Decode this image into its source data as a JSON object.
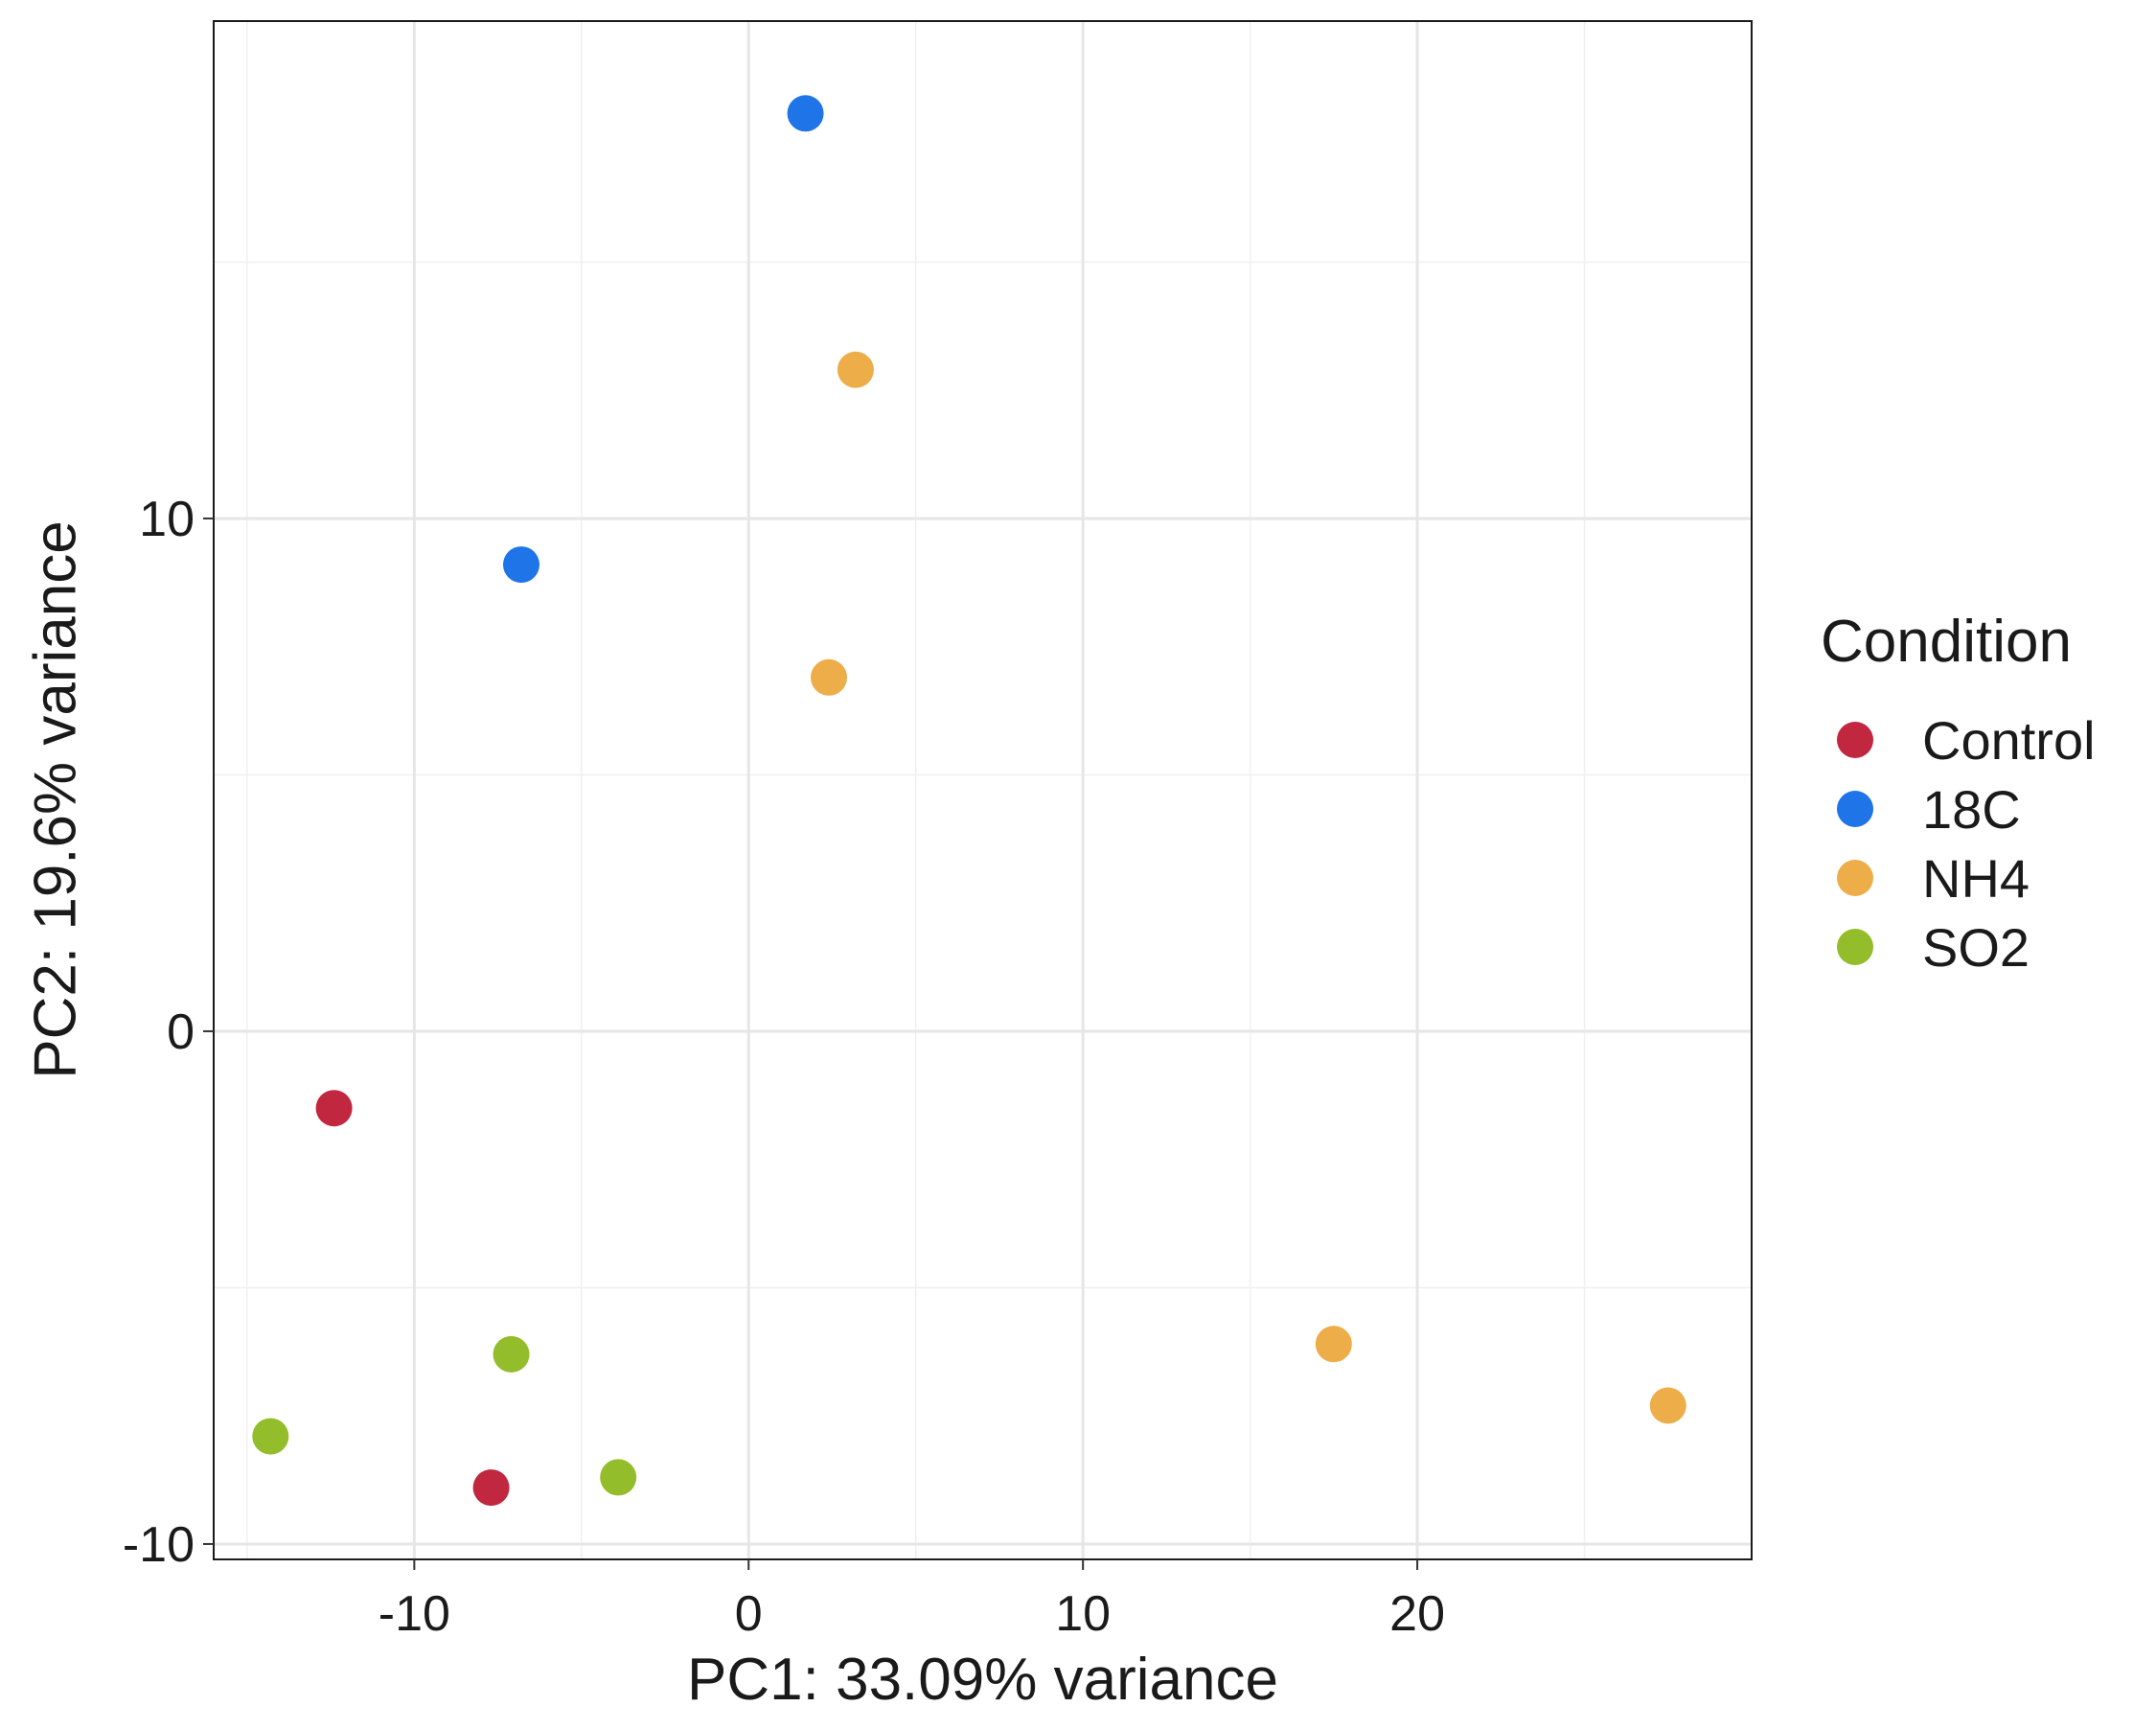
{
  "chart_data": {
    "type": "scatter",
    "xlabel": "PC1: 33.09% variance",
    "ylabel": "PC2: 19.6% variance",
    "xlim": [
      -16,
      30
    ],
    "ylim": [
      -10.3,
      19.7
    ],
    "x_ticks": [
      -10,
      0,
      10,
      20
    ],
    "y_ticks": [
      -10,
      0,
      10
    ],
    "grid": true,
    "legend": {
      "title": "Condition",
      "position": "right"
    },
    "series": [
      {
        "name": "Control",
        "color": "#C1273F",
        "points": [
          {
            "x": -12.4,
            "y": -1.5
          },
          {
            "x": -7.7,
            "y": -8.9
          }
        ]
      },
      {
        "name": "18C",
        "color": "#1F74E8",
        "points": [
          {
            "x": 1.7,
            "y": 17.9
          },
          {
            "x": -6.8,
            "y": 9.1
          }
        ]
      },
      {
        "name": "NH4",
        "color": "#EDAE4A",
        "points": [
          {
            "x": 3.2,
            "y": 12.9
          },
          {
            "x": 2.4,
            "y": 6.9
          },
          {
            "x": 17.5,
            "y": -6.1
          },
          {
            "x": 27.5,
            "y": -7.3
          }
        ]
      },
      {
        "name": "SO2",
        "color": "#93BD2A",
        "points": [
          {
            "x": -7.1,
            "y": -6.3
          },
          {
            "x": -14.3,
            "y": -7.9
          },
          {
            "x": -3.9,
            "y": -8.7
          }
        ]
      }
    ]
  }
}
